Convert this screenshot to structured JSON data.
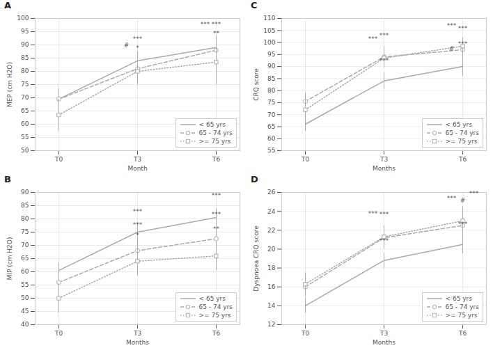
{
  "chart_data": [
    {
      "type": "line",
      "title": "A",
      "xlabel": "Month",
      "ylabel": "MEP (cm H2O)",
      "categories": [
        "T0",
        "T3",
        "T6"
      ],
      "ylim": [
        50,
        100
      ],
      "yticks": [
        50,
        55,
        60,
        65,
        70,
        75,
        80,
        85,
        90,
        95,
        100
      ],
      "grid": true,
      "legend": "lower right",
      "series": [
        {
          "name": "< 65 yrs",
          "color": "#aaaaaa",
          "line_style": "solid",
          "marker": "none",
          "values": [
            69.5,
            84.0,
            89.0
          ],
          "errors": [
            3.5,
            3.5,
            4.0
          ]
        },
        {
          "name": "65 - 74 yrs",
          "color": "#aaaaaa",
          "line_style": "dashed",
          "marker": "circle",
          "values": [
            69.5,
            81.0,
            88.0
          ],
          "errors": [
            4.0,
            4.5,
            5.5
          ]
        },
        {
          "name": ">= 75 yrs",
          "color": "#aaaaaa",
          "line_style": "dotted",
          "marker": "square",
          "values": [
            63.5,
            80.0,
            83.5
          ],
          "errors": [
            6.0,
            5.0,
            8.5
          ]
        }
      ],
      "annotations": [
        {
          "x": "T3",
          "y": 91.0,
          "text": "***"
        },
        {
          "x": "T3",
          "y": 88.5,
          "text": "#"
        },
        {
          "x": "T3",
          "y": 87.5,
          "text": "*"
        },
        {
          "x": "T6",
          "y": 96.5,
          "text": "***"
        },
        {
          "x": "T6",
          "y": 96.5,
          "text": "***"
        },
        {
          "x": "T6",
          "y": 93.0,
          "text": "**"
        }
      ]
    },
    {
      "type": "line",
      "title": "B",
      "xlabel": "Months",
      "ylabel": "MIP (cm H2O)",
      "categories": [
        "T0",
        "T3",
        "T6"
      ],
      "ylim": [
        40,
        90
      ],
      "yticks": [
        40,
        45,
        50,
        55,
        60,
        65,
        70,
        75,
        80,
        85,
        90
      ],
      "grid": true,
      "legend": "lower right",
      "series": [
        {
          "name": "< 65 yrs",
          "color": "#aaaaaa",
          "line_style": "solid",
          "marker": "none",
          "values": [
            60.5,
            75.0,
            80.5
          ],
          "errors": [
            3.0,
            3.5,
            3.5
          ]
        },
        {
          "name": "65 - 74 yrs",
          "color": "#aaaaaa",
          "line_style": "dashed",
          "marker": "circle",
          "values": [
            56.0,
            68.0,
            72.5
          ],
          "errors": [
            3.5,
            4.0,
            4.5
          ]
        },
        {
          "name": ">= 75 yrs",
          "color": "#aaaaaa",
          "line_style": "dotted",
          "marker": "square",
          "values": [
            50.0,
            64.0,
            66.0
          ],
          "errors": [
            5.5,
            5.5,
            5.5
          ]
        }
      ],
      "annotations": [
        {
          "x": "T3",
          "y": 81.5,
          "text": "***"
        },
        {
          "x": "T3",
          "y": 76.5,
          "text": "***"
        },
        {
          "x": "T3",
          "y": 72.5,
          "text": "*"
        },
        {
          "x": "T6",
          "y": 87.5,
          "text": "***"
        },
        {
          "x": "T6",
          "y": 80.5,
          "text": "***"
        },
        {
          "x": "T6",
          "y": 75.0,
          "text": "**"
        }
      ]
    },
    {
      "type": "line",
      "title": "C",
      "xlabel": "Months",
      "ylabel": "CRQ score",
      "categories": [
        "T0",
        "T3",
        "T6"
      ],
      "ylim": [
        55,
        110
      ],
      "yticks": [
        55,
        60,
        65,
        70,
        75,
        80,
        85,
        90,
        95,
        100,
        105,
        110
      ],
      "grid": true,
      "legend": "lower right",
      "series": [
        {
          "name": "< 65 yrs",
          "color": "#aaaaaa",
          "line_style": "solid",
          "marker": "none",
          "values": [
            66.0,
            84.0,
            90.0
          ],
          "errors": [
            3.0,
            3.5,
            4.0
          ]
        },
        {
          "name": "65 - 74 yrs",
          "color": "#aaaaaa",
          "line_style": "dashed",
          "marker": "circle",
          "values": [
            75.5,
            94.0,
            97.0
          ],
          "errors": [
            3.5,
            4.5,
            4.5
          ]
        },
        {
          "name": ">= 75 yrs",
          "color": "#aaaaaa",
          "line_style": "dotted",
          "marker": "square",
          "values": [
            72.0,
            93.5,
            98.5
          ],
          "errors": [
            4.0,
            3.5,
            3.5
          ]
        }
      ],
      "annotations": [
        {
          "x": "T3",
          "y": 91.0,
          "text": "***"
        },
        {
          "x": "T3",
          "y": 101.5,
          "text": "***"
        },
        {
          "x": "T3",
          "y": 100.0,
          "text": "***"
        },
        {
          "x": "T6",
          "y": 98.0,
          "text": "***"
        },
        {
          "x": "T6",
          "y": 96.0,
          "text": "#"
        },
        {
          "x": "T6",
          "y": 104.5,
          "text": "***"
        },
        {
          "x": "T6",
          "y": 105.5,
          "text": "***"
        }
      ]
    },
    {
      "type": "line",
      "title": "D",
      "xlabel": "Months",
      "ylabel": "Dyspnoea CRQ score",
      "categories": [
        "T0",
        "T3",
        "T6"
      ],
      "ylim": [
        12,
        26
      ],
      "yticks": [
        12,
        14,
        16,
        18,
        20,
        22,
        24,
        26
      ],
      "grid": true,
      "legend": "lower right",
      "series": [
        {
          "name": "< 65 yrs",
          "color": "#aaaaaa",
          "line_style": "solid",
          "marker": "none",
          "values": [
            14.0,
            18.8,
            20.5
          ],
          "errors": [
            0.8,
            0.8,
            1.0
          ]
        },
        {
          "name": "65 - 74 yrs",
          "color": "#aaaaaa",
          "line_style": "dashed",
          "marker": "circle",
          "values": [
            16.0,
            21.2,
            22.5
          ],
          "errors": [
            1.0,
            1.2,
            1.5
          ]
        },
        {
          "name": ">= 75 yrs",
          "color": "#aaaaaa",
          "line_style": "dotted",
          "marker": "square",
          "values": [
            16.3,
            21.3,
            23.0
          ],
          "errors": [
            1.2,
            1.2,
            1.5
          ]
        }
      ],
      "annotations": [
        {
          "x": "T3",
          "y": 20.5,
          "text": "***"
        },
        {
          "x": "T3",
          "y": 23.3,
          "text": "***"
        },
        {
          "x": "T3",
          "y": 23.4,
          "text": "***"
        },
        {
          "x": "T6",
          "y": 22.3,
          "text": "***"
        },
        {
          "x": "T6",
          "y": 24.8,
          "text": "#"
        },
        {
          "x": "T6",
          "y": 25.0,
          "text": "***"
        },
        {
          "x": "T6",
          "y": 25.5,
          "text": "***"
        }
      ]
    }
  ]
}
